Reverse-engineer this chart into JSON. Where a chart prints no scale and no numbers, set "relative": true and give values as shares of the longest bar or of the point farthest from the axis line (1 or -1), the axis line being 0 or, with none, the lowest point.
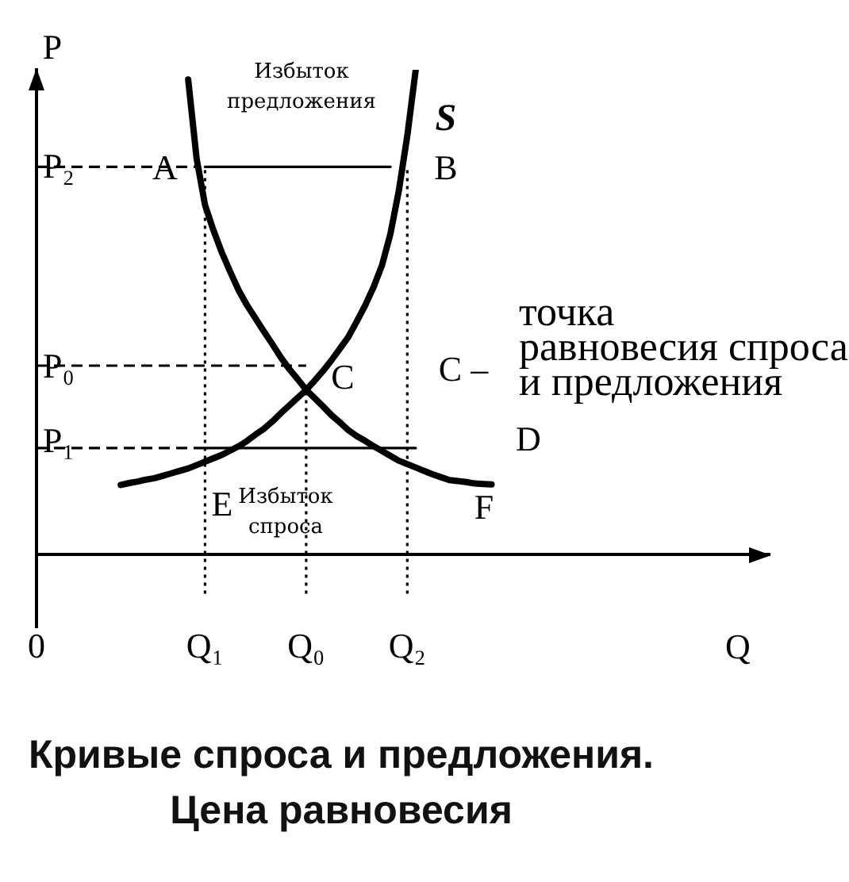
{
  "chart_data": {
    "type": "line",
    "relative": true,
    "title": "Кривые спроса и предложения.",
    "subtitle": "Цена равновесия",
    "xlabel": "Q",
    "ylabel": "P",
    "grid": false,
    "legend": false,
    "marker": "none",
    "categories": [
      "0",
      null,
      null,
      null,
      null,
      null,
      null,
      null,
      null,
      null,
      null,
      null,
      null,
      null,
      null,
      null,
      null,
      null,
      null,
      null,
      "Q₁",
      null,
      null,
      null,
      null,
      null,
      null,
      null,
      null,
      null,
      null,
      null,
      "Q₀",
      null,
      null,
      null,
      null,
      null,
      null,
      null,
      null,
      null,
      null,
      null,
      "Q₂",
      null,
      null,
      null,
      null,
      null,
      null,
      null,
      null,
      null,
      null,
      null,
      null,
      null,
      null,
      null,
      null,
      null,
      null,
      null,
      null,
      null,
      null,
      null,
      null,
      null,
      null,
      null,
      null,
      null,
      null,
      null,
      null,
      null,
      null,
      null,
      null,
      null,
      null,
      null,
      null,
      null,
      null,
      null
    ],
    "series": [
      {
        "name": "S",
        "color": "#000000",
        "values": [
          null,
          null,
          null,
          null,
          null,
          null,
          null,
          null,
          null,
          null,
          0.144,
          0.148,
          0.151,
          0.155,
          0.158,
          0.163,
          0.168,
          0.173,
          0.178,
          0.185,
          0.192,
          0.199,
          0.206,
          0.215,
          0.224,
          0.235,
          0.248,
          0.26,
          0.275,
          0.292,
          0.308,
          0.324,
          0.34,
          0.359,
          0.379,
          0.401,
          0.425,
          0.449,
          0.481,
          0.514,
          0.552,
          0.597,
          0.662,
          0.751,
          0.864,
          1.0,
          null,
          null,
          null,
          null,
          null,
          null,
          null,
          null,
          null,
          null,
          null,
          null,
          null,
          null,
          null,
          null,
          null,
          null,
          null,
          null,
          null,
          null,
          null,
          null,
          null,
          null,
          null,
          null,
          null,
          null,
          null,
          null,
          null,
          null,
          null,
          null,
          null,
          null,
          null,
          null,
          null,
          null
        ]
      },
      {
        "color": "#000000",
        "values": [
          null,
          null,
          null,
          null,
          null,
          null,
          null,
          null,
          null,
          null,
          null,
          null,
          null,
          null,
          null,
          null,
          null,
          null,
          0.98,
          0.817,
          0.721,
          0.669,
          0.623,
          0.583,
          0.545,
          0.514,
          0.487,
          0.46,
          0.434,
          0.407,
          0.383,
          0.362,
          0.34,
          0.323,
          0.306,
          0.288,
          0.273,
          0.257,
          0.245,
          0.235,
          0.224,
          0.214,
          0.204,
          0.194,
          0.187,
          0.18,
          0.173,
          0.166,
          0.16,
          0.154,
          0.152,
          0.15,
          0.147,
          0.146,
          0.145,
          null,
          null,
          null,
          null,
          null,
          null,
          null,
          null,
          null,
          null,
          null,
          null,
          null,
          null,
          null,
          null,
          null,
          null,
          null,
          null,
          null,
          null,
          null,
          null,
          null,
          null,
          null,
          null,
          null,
          null,
          null,
          null,
          null
        ]
      },
      {
        "color": "#000000",
        "values": [
          null,
          null,
          null,
          null,
          null,
          null,
          null,
          null,
          null,
          null,
          null,
          null,
          null,
          null,
          null,
          null,
          null,
          null,
          null,
          null,
          0.8,
          0.8,
          0.8,
          0.8,
          0.8,
          0.8,
          0.8,
          0.8,
          0.8,
          0.8,
          0.8,
          0.8,
          0.8,
          0.8,
          0.8,
          0.8,
          0.8,
          0.8,
          0.8,
          0.8,
          0.8,
          0.8,
          0.8,
          null,
          null,
          null,
          null,
          null,
          null,
          null,
          null,
          null,
          null,
          null,
          null,
          null,
          null,
          null,
          null,
          null,
          null,
          null,
          null,
          null,
          null,
          null,
          null,
          null,
          null,
          null,
          null,
          null,
          null,
          null,
          null,
          null,
          null,
          null,
          null,
          null,
          null,
          null,
          null,
          null,
          null,
          null,
          null,
          null
        ]
      },
      {
        "color": "#000000",
        "values": [
          null,
          null,
          null,
          null,
          null,
          null,
          null,
          null,
          null,
          null,
          null,
          null,
          null,
          null,
          null,
          null,
          null,
          null,
          null,
          null,
          0.22,
          0.22,
          0.22,
          0.22,
          0.22,
          0.22,
          0.22,
          0.22,
          0.22,
          0.22,
          0.22,
          0.22,
          0.22,
          0.22,
          0.22,
          0.22,
          0.22,
          0.22,
          0.22,
          0.22,
          0.22,
          0.22,
          0.22,
          0.22,
          0.22,
          0.22,
          null,
          null,
          null,
          null,
          null,
          null,
          null,
          null,
          null,
          null,
          null,
          null,
          null,
          null,
          null,
          null,
          null,
          null,
          null,
          null,
          null,
          null,
          null,
          null,
          null,
          null,
          null,
          null,
          null,
          null,
          null,
          null,
          null,
          null,
          null,
          null,
          null,
          null,
          null,
          null,
          null,
          null
        ]
      },
      {
        "color": "#000000",
        "line_style": "dashed",
        "values": [
          0.8,
          0.8,
          0.8,
          0.8,
          0.8,
          0.8,
          0.8,
          0.8,
          0.8,
          0.8,
          0.8,
          0.8,
          0.8,
          0.8,
          0.8,
          0.8,
          0.8,
          0.8,
          0.8,
          0.8,
          null,
          null,
          null,
          null,
          null,
          null,
          null,
          null,
          null,
          null,
          null,
          null,
          null,
          null,
          null,
          null,
          null,
          null,
          null,
          null,
          null,
          null,
          null,
          null,
          null,
          null,
          null,
          null,
          null,
          null,
          null,
          null,
          null,
          null,
          null,
          null,
          null,
          null,
          null,
          null,
          null,
          null,
          null,
          null,
          null,
          null,
          null,
          null,
          null,
          null,
          null,
          null,
          null,
          null,
          null,
          null,
          null,
          null,
          null,
          null,
          null,
          null,
          null,
          null,
          null,
          null,
          null,
          null
        ]
      },
      {
        "color": "#000000",
        "line_style": "dashed",
        "values": [
          0.39,
          0.39,
          0.39,
          0.39,
          0.39,
          0.39,
          0.39,
          0.39,
          0.39,
          0.39,
          0.39,
          0.39,
          0.39,
          0.39,
          0.39,
          0.39,
          0.39,
          0.39,
          0.39,
          0.39,
          0.39,
          0.39,
          0.39,
          0.39,
          0.39,
          0.39,
          0.39,
          0.39,
          0.39,
          0.39,
          0.39,
          0.39,
          0.39,
          null,
          null,
          null,
          null,
          null,
          null,
          null,
          null,
          null,
          null,
          null,
          null,
          null,
          null,
          null,
          null,
          null,
          null,
          null,
          null,
          null,
          null,
          null,
          null,
          null,
          null,
          null,
          null,
          null,
          null,
          null,
          null,
          null,
          null,
          null,
          null,
          null,
          null,
          null,
          null,
          null,
          null,
          null,
          null,
          null,
          null,
          null,
          null,
          null,
          null,
          null,
          null,
          null,
          null,
          null
        ]
      },
      {
        "color": "#000000",
        "line_style": "dashed",
        "values": [
          0.22,
          0.22,
          0.22,
          0.22,
          0.22,
          0.22,
          0.22,
          0.22,
          0.22,
          0.22,
          0.22,
          0.22,
          0.22,
          0.22,
          0.22,
          0.22,
          0.22,
          0.22,
          0.22,
          0.22,
          0.22,
          null,
          null,
          null,
          null,
          null,
          null,
          null,
          null,
          null,
          null,
          null,
          null,
          null,
          null,
          null,
          null,
          null,
          null,
          null,
          null,
          null,
          null,
          null,
          null,
          null,
          null,
          null,
          null,
          null,
          null,
          null,
          null,
          null,
          null,
          null,
          null,
          null,
          null,
          null,
          null,
          null,
          null,
          null,
          null,
          null,
          null,
          null,
          null,
          null,
          null,
          null,
          null,
          null,
          null,
          null,
          null,
          null,
          null,
          null,
          null,
          null,
          null,
          null,
          null,
          null,
          null,
          null
        ]
      },
      {
        "color": "#000000",
        "line_style": "dotted",
        "x": [
          "Q₁",
          "Q₁"
        ],
        "values": [
          -0.08,
          0.8
        ]
      },
      {
        "color": "#000000",
        "line_style": "dotted",
        "x": [
          "Q₀",
          "Q₀"
        ],
        "values": [
          -0.08,
          0.34
        ]
      },
      {
        "color": "#000000",
        "line_style": "dotted",
        "x": [
          "Q₂",
          "Q₂"
        ],
        "values": [
          -0.08,
          0.8
        ]
      }
    ],
    "annotations": [
      "Избыток предложения",
      "A",
      "B",
      "C",
      "C –",
      "точка\nравновесия спроса\nи предложения",
      "D",
      "E",
      "F",
      "Избыток спроса",
      "P₂",
      "P₀",
      "P₁"
    ]
  }
}
